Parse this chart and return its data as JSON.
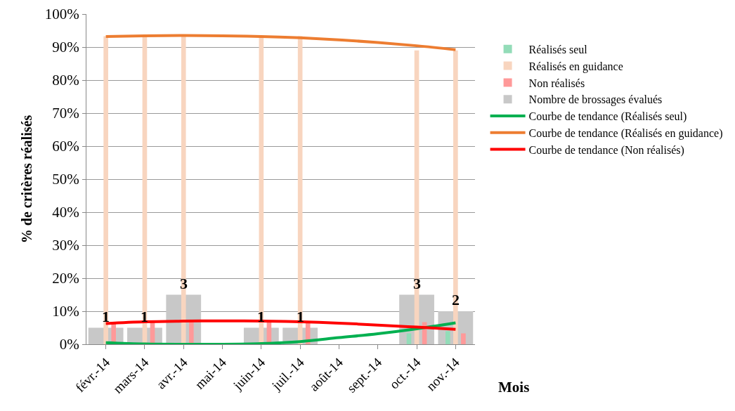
{
  "chart_data": {
    "type": "bar",
    "xlabel": "Mois",
    "ylabel": "% de critères réalisés",
    "categories": [
      "févr.-14",
      "mars-14",
      "avr.-14",
      "mai-14",
      "juin-14",
      "juil.-14",
      "août-14",
      "sept.-14",
      "oct.-14",
      "nov.-14"
    ],
    "ylim": [
      0,
      100
    ],
    "yticks": [
      {
        "value": 0,
        "label": "0%"
      },
      {
        "value": 10,
        "label": "10%"
      },
      {
        "value": 20,
        "label": "20%"
      },
      {
        "value": 30,
        "label": "30%"
      },
      {
        "value": 40,
        "label": "40%"
      },
      {
        "value": 50,
        "label": "50%"
      },
      {
        "value": 60,
        "label": "60%"
      },
      {
        "value": 70,
        "label": "70%"
      },
      {
        "value": 80,
        "label": "80%"
      },
      {
        "value": 90,
        "label": "90%"
      },
      {
        "value": 100,
        "label": "100%"
      }
    ],
    "y2lim": [
      0,
      20
    ],
    "grid": "y",
    "legend": "right",
    "series": [
      {
        "name": "Réalisés seul",
        "color": "#93dcb8",
        "values": [
          0,
          0,
          0,
          null,
          0,
          0,
          null,
          null,
          3.3,
          4
        ]
      },
      {
        "name": "Réalisés en guidance",
        "color": "#f8d5bf",
        "values": [
          93.3,
          93.3,
          93.3,
          null,
          93.3,
          93.3,
          null,
          null,
          89,
          89
        ]
      },
      {
        "name": "Non réalisés",
        "color": "#ff9999",
        "values": [
          6.7,
          6.7,
          6.7,
          null,
          6.7,
          6.7,
          null,
          null,
          6.7,
          3.3
        ]
      },
      {
        "name": "Nombre de brossages évalués",
        "color": "#c8c8c8",
        "axis": "y2",
        "values": [
          1,
          1,
          3,
          null,
          1,
          1,
          null,
          null,
          3,
          2
        ],
        "value_labels": [
          "1",
          "1",
          "3",
          null,
          "1",
          "1",
          null,
          null,
          "3",
          "2"
        ]
      },
      {
        "name": "Courbe de tendance (Réalisés seul)",
        "type": "line",
        "color": "#00b050",
        "values": [
          0.5,
          0.1,
          0,
          0,
          0.2,
          0.8,
          2,
          3.2,
          4.7,
          6.5
        ]
      },
      {
        "name": "Courbe de tendance (Réalisés en guidance)",
        "type": "line",
        "color": "#ed7d31",
        "values": [
          93.2,
          93.4,
          93.5,
          93.4,
          93.2,
          92.8,
          92.2,
          91.4,
          90.4,
          89.2
        ]
      },
      {
        "name": "Courbe de tendance (Non réalisés)",
        "type": "line",
        "color": "#ff0000",
        "values": [
          6.3,
          6.8,
          7,
          7.1,
          7,
          6.8,
          6.4,
          5.8,
          5.2,
          4.5
        ]
      }
    ]
  }
}
